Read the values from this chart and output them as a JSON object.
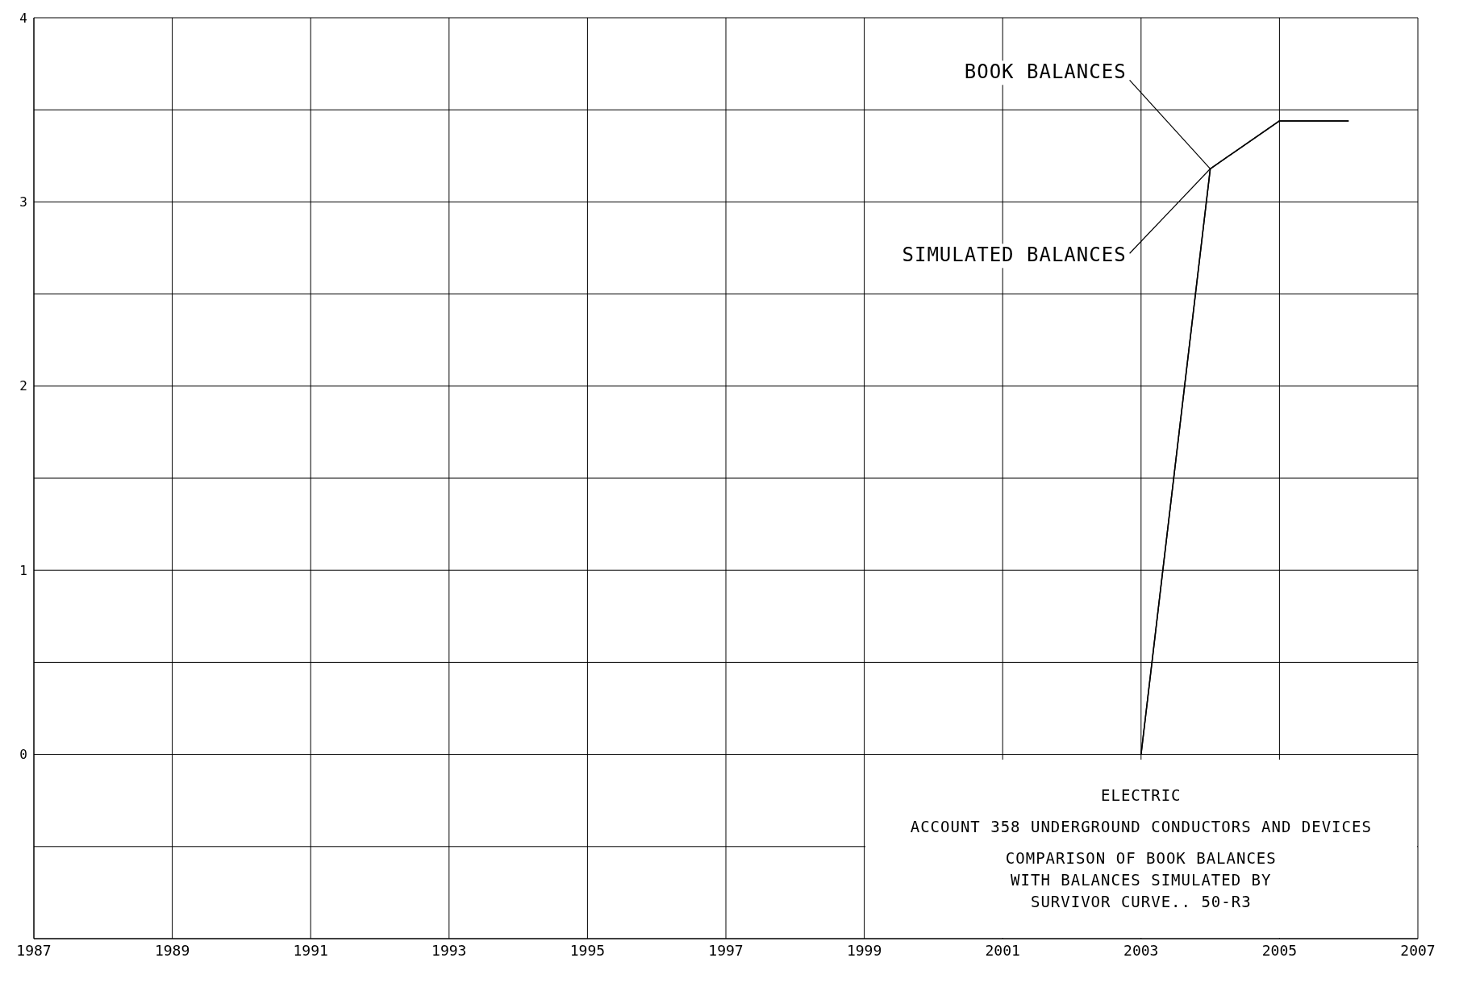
{
  "chart_data": {
    "type": "line",
    "series": [
      {
        "name": "BOOK BALANCES",
        "color": "#000000",
        "x": [
          2003,
          2004,
          2005,
          2006
        ],
        "values": [
          0,
          3.18,
          3.44,
          3.44
        ]
      },
      {
        "name": "SIMULATED BALANCES",
        "color": "#000000",
        "x": [
          2003,
          2004,
          2005,
          2006
        ],
        "values": [
          0,
          3.18,
          3.44,
          3.44
        ]
      }
    ],
    "xlim": [
      1987,
      2007
    ],
    "xticks": [
      1987,
      1989,
      1991,
      1993,
      1995,
      1997,
      1999,
      2001,
      2003,
      2005,
      2007
    ],
    "ylim": [
      -1,
      4
    ],
    "yticks": [
      {
        "value": -1,
        "label": null
      },
      {
        "value": -0.5,
        "label": null
      },
      0,
      {
        "value": 0.5,
        "label": null
      },
      1,
      {
        "value": 1.5,
        "label": null
      },
      2,
      {
        "value": 2.5,
        "label": null
      },
      3,
      {
        "value": 3.5,
        "label": null
      },
      4
    ],
    "grid": true,
    "marker": "none",
    "line_style": "solid",
    "annotations": [
      "ELECTRIC",
      "ACCOUNT 358 UNDERGROUND CONDUCTORS AND DEVICES",
      "COMPARISON OF BOOK BALANCES",
      "WITH BALANCES SIMULATED BY",
      "SURVIVOR CURVE..  50-R3"
    ]
  }
}
